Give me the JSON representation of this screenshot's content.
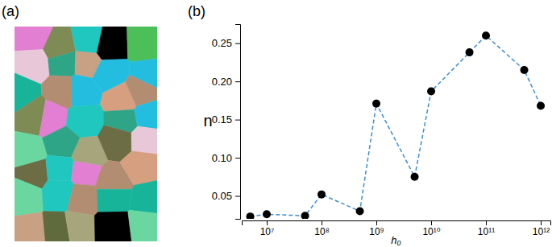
{
  "panel_labels": [
    "(a)",
    "(b)"
  ],
  "chart_data": {
    "type": "line",
    "xlabel": "h₀",
    "ylabel": "n",
    "log": "x",
    "grid": false,
    "marker": "circle",
    "line_style": "dashed",
    "x": [
      5000000,
      10000000,
      50000000,
      100000000,
      500000000,
      1000000000,
      5000000000,
      10000000000,
      50000000000,
      100000000000,
      500000000000,
      1000000000000
    ],
    "series": [
      {
        "color": "#3d8fd1",
        "values": [
          0.023,
          0.026,
          0.024,
          0.052,
          0.03,
          0.171,
          0.075,
          0.187,
          0.238,
          0.26,
          0.215,
          0.168
        ]
      }
    ],
    "xlim": [
      3500000,
      1500000000000
    ],
    "xticks": [
      {
        "value": 10000000,
        "label": "10⁷"
      },
      {
        "value": 100000000,
        "label": "10⁸"
      },
      {
        "value": 1000000000,
        "label": "10⁹"
      },
      {
        "value": 10000000000,
        "label": "10¹⁰"
      },
      {
        "value": 100000000000,
        "label": "10¹¹"
      },
      {
        "value": 1000000000000,
        "label": "10¹²"
      }
    ],
    "ylim": [
      0.02,
      0.275
    ],
    "yticks": [
      0.05,
      {
        "value": 0.1,
        "label": "0.10"
      },
      0.15,
      {
        "value": 0.2,
        "label": "0.20"
      },
      0.25
    ]
  }
}
